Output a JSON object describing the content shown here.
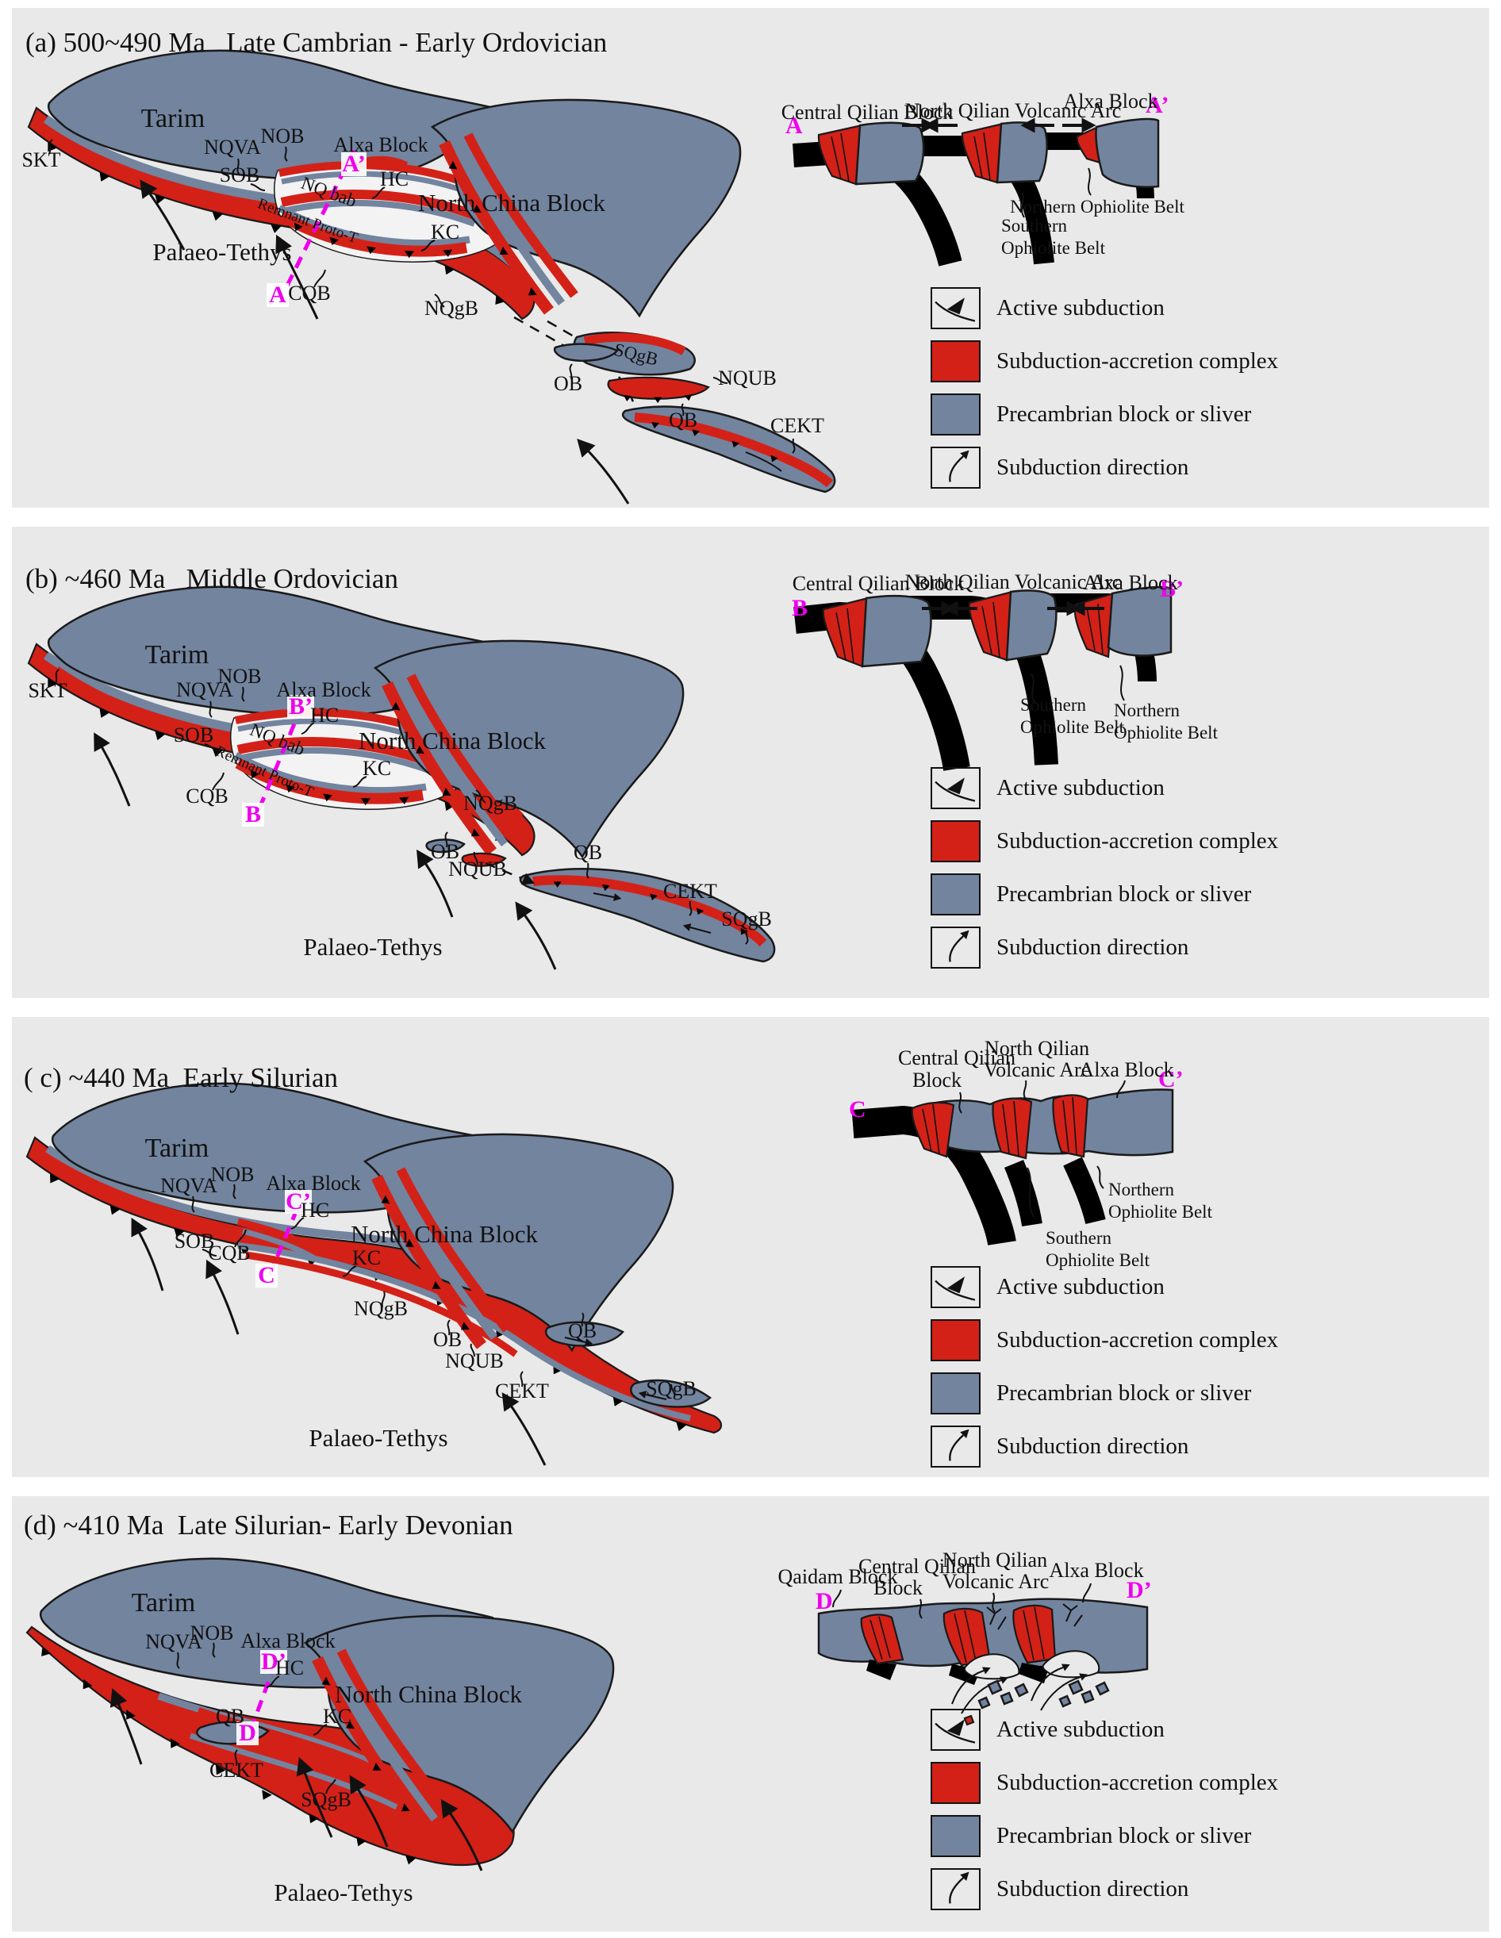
{
  "figure": {
    "bg": "#ffffff",
    "panel_bg": "#e9e9e9"
  },
  "colors": {
    "precambrian_block": "#73849f",
    "accretion_complex": "#d32118",
    "oceanic_slab": "#000000",
    "section_line": "#ee00ee",
    "outline": "#1a1a1a"
  },
  "legend": {
    "items": [
      {
        "id": "active-subduction",
        "label": "Active subduction"
      },
      {
        "id": "subduction-accretion-complex",
        "label": "Subduction-accretion complex",
        "color": "#d32118"
      },
      {
        "id": "precambrian-block-or-sliver",
        "label": "Precambrian block or sliver",
        "color": "#73849f"
      },
      {
        "id": "subduction-direction",
        "label": "Subduction direction"
      }
    ]
  },
  "panels": {
    "a": {
      "title": "(a) 500~490 Ma   Late Cambrian - Early Ordovician",
      "map": {
        "tarim": "Tarim",
        "ncb": "North China Block",
        "skt": "SKT",
        "nqva": "NQVA",
        "nob": "NOB",
        "alxa": "Alxa Block",
        "hc": "HC",
        "sob": "SOB",
        "nqbab": "NQ bab",
        "remnant": "Remnant Proto-T",
        "cqb": "CQB",
        "kc": "KC",
        "nqgb": "NQgB",
        "sqgb": "SQgB",
        "ob": "OB",
        "nqub": "NQUB",
        "qb": "QB",
        "cekt": "CEKT",
        "ocean": "Palaeo-Tethys",
        "sec_start": "A",
        "sec_end": "A’"
      },
      "xsec": {
        "start": "A",
        "end": "A’",
        "central_qilian": "Central Qilian Block",
        "volcanic_arc": "North Qilian Volcanic Arc",
        "alxa": "Alxa Block",
        "northern_ob": "Northern Ophiolite Belt",
        "southern_ob_1": "Southern",
        "southern_ob_2": "Ophiolite Belt"
      }
    },
    "b": {
      "title": "(b) ~460 Ma   Middle Ordovician",
      "map": {
        "tarim": "Tarim",
        "ncb": "North China Block",
        "skt": "SKT",
        "nqva": "NQVA",
        "nob": "NOB",
        "alxa": "Alxa Block",
        "hc": "HC",
        "sob": "SOB",
        "nqbab": "NQ bab",
        "remnant": "Remnant Proto-T",
        "cqb": "CQB",
        "kc": "KC",
        "nqgb": "NQgB",
        "sqgb": "SQgB",
        "ob": "OB",
        "nqub": "NQUB",
        "qb": "QB",
        "cekt": "CEKT",
        "ocean": "Palaeo-Tethys",
        "sec_start": "B",
        "sec_end": "B’"
      },
      "xsec": {
        "start": "B",
        "end": "B’",
        "central_qilian": "Central Qilian Block",
        "volcanic_arc": "North Qilian Volcanic Arc",
        "alxa": "Alxa Block",
        "southern_ob_1": "Southern",
        "southern_ob_2": "Ophiolite Belt",
        "northern_ob_1": "Northern",
        "northern_ob_2": "Ophiolite Belt"
      }
    },
    "c": {
      "title": "( c) ~440 Ma  Early Silurian",
      "map": {
        "tarim": "Tarim",
        "ncb": "North China Block",
        "nqva": "NQVA",
        "nob": "NOB",
        "alxa": "Alxa Block",
        "hc": "HC",
        "sob": "SOB",
        "cqb": "CQB",
        "kc": "KC",
        "nqgb": "NQgB",
        "ob": "OB",
        "nqub": "NQUB",
        "qb": "QB",
        "cekt": "CEKT",
        "sqgb": "SQgB",
        "ocean": "Palaeo-Tethys",
        "sec_start": "C",
        "sec_end": "C’"
      },
      "xsec": {
        "start": "C",
        "end": "C’",
        "central_qilian_1": "Central Qilian",
        "central_qilian_2": "Block",
        "volcanic_arc_1": "North Qilian",
        "volcanic_arc_2": "Volcanic Arc",
        "alxa": "Alxa Block",
        "northern_ob_1": "Northern",
        "northern_ob_2": "Ophiolite Belt",
        "southern_ob_1": "Southern",
        "southern_ob_2": "Ophiolite Belt"
      }
    },
    "d": {
      "title": "(d) ~410 Ma  Late Silurian- Early Devonian",
      "map": {
        "tarim": "Tarim",
        "ncb": "North China Block",
        "nqva": "NQVA",
        "nob": "NOB",
        "alxa": "Alxa Block",
        "hc": "HC",
        "kc": "KC",
        "qb": "QB",
        "cekt": "CEKT",
        "sqgb": "SQgB",
        "ocean": "Palaeo-Tethys",
        "sec_start": "D",
        "sec_end": "D’"
      },
      "xsec": {
        "start": "D",
        "end": "D’",
        "qaidam": "Qaidam Block",
        "central_qilian_1": "Central Qilian",
        "central_qilian_2": "Block",
        "volcanic_arc_1": "North Qilian",
        "volcanic_arc_2": "Volcanic Arc",
        "alxa": "Alxa Block"
      }
    }
  }
}
